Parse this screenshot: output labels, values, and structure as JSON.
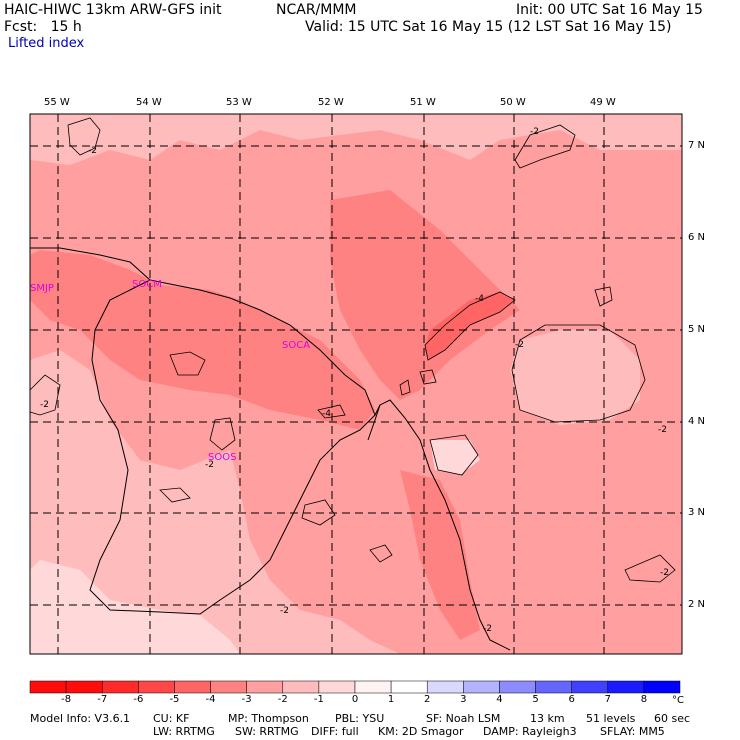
{
  "header": {
    "model": "HAIC-HIWC 13km ARW-GFS init",
    "org": "NCAR/MMM",
    "init": "Init: 00 UTC Sat 16 May 15",
    "fcst": "Fcst:   15 h",
    "valid": "Valid: 15 UTC Sat 16 May 15 (12 LST Sat 16 May 15)",
    "field": "Lifted index"
  },
  "lon_labels": [
    "55 W",
    "54 W",
    "53 W",
    "52 W",
    "51 W",
    "50 W",
    "49 W"
  ],
  "lat_labels": [
    "7 N",
    "6 N",
    "5 N",
    "4 N",
    "3 N",
    "2 N"
  ],
  "stations": [
    "SMJP",
    "SOCM",
    "SOCA",
    "SOOS"
  ],
  "contour_labels": [
    "-2",
    "-2",
    "-2",
    "-2",
    "-4",
    "-4",
    "-2",
    "-2",
    "-2",
    "-2",
    "-2"
  ],
  "colorbar": {
    "ticks": [
      "-8",
      "-7",
      "-6",
      "-5",
      "-4",
      "-3",
      "-2",
      "-1",
      "0",
      "1",
      "2",
      "3",
      "4",
      "5",
      "6",
      "7",
      "8"
    ],
    "unit": "°C",
    "colors": [
      "#ff0d0d",
      "#ff2a2a",
      "#ff4747",
      "#ff6565",
      "#ff8282",
      "#ff9f9f",
      "#ffbcbc",
      "#ffd9d9",
      "#fff2f2",
      "#ffffff",
      "#d9d9ff",
      "#b3b3ff",
      "#8c8cff",
      "#6666ff",
      "#4040ff",
      "#1a1aff",
      "#0000ff"
    ]
  },
  "footer": {
    "line1_a": "Model Info: V3.6.1",
    "line1_b": "CU: KF",
    "line1_c": "MP: Thompson",
    "line1_d": "PBL: YSU",
    "line1_e": "SF: Noah LSM",
    "line1_f": "13 km",
    "line1_g": "51 levels",
    "line1_h": "60 sec",
    "line2_a": "LW: RRTMG",
    "line2_b": "SW: RRTMG",
    "line2_c": "DIFF: full",
    "line2_d": "KM: 2D Smagor",
    "line2_e": "DAMP: Rayleigh3",
    "line2_f": "SFLAY: MM5"
  }
}
